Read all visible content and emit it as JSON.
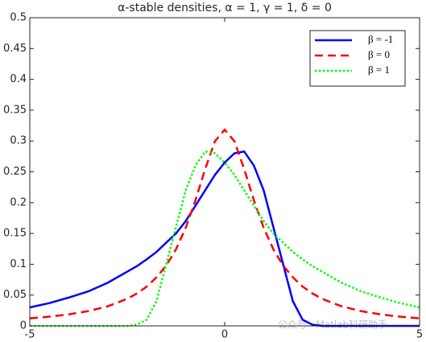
{
  "chart_data": {
    "type": "line",
    "title": "α-stable densities, α = 1, γ = 1, δ = 0",
    "x": [
      -5,
      -4.5,
      -4,
      -3.5,
      -3,
      -2.5,
      -2.25,
      -2,
      -1.75,
      -1.5,
      -1.25,
      -1,
      -0.75,
      -0.5,
      -0.25,
      0,
      0.25,
      0.5,
      0.75,
      1,
      1.25,
      1.5,
      1.75,
      2,
      2.25,
      2.5,
      3,
      3.5,
      4,
      4.5,
      5
    ],
    "series": [
      {
        "name": "β = -1",
        "color": "#0000ff",
        "linestyle": "solid",
        "values": [
          0.03,
          0.037,
          0.046,
          0.056,
          0.07,
          0.088,
          0.097,
          0.108,
          0.12,
          0.135,
          0.15,
          0.17,
          0.195,
          0.22,
          0.245,
          0.265,
          0.28,
          0.283,
          0.26,
          0.22,
          0.16,
          0.1,
          0.04,
          0.01,
          0.002,
          0,
          0,
          0,
          0,
          0,
          0
        ]
      },
      {
        "name": "β = 0",
        "color": "#ff0000",
        "linestyle": "dashed",
        "values": [
          0.0122,
          0.015,
          0.0187,
          0.024,
          0.0318,
          0.0439,
          0.0527,
          0.0637,
          0.0788,
          0.0979,
          0.1241,
          0.1592,
          0.2037,
          0.2546,
          0.2996,
          0.3183,
          0.2996,
          0.2546,
          0.2037,
          0.1592,
          0.1241,
          0.0979,
          0.0788,
          0.0637,
          0.0527,
          0.0439,
          0.0318,
          0.024,
          0.0187,
          0.015,
          0.0122
        ]
      },
      {
        "name": "β = 1",
        "color": "#00ff00",
        "linestyle": "dotted",
        "values": [
          0,
          0,
          0,
          0,
          0,
          0,
          0.002,
          0.01,
          0.04,
          0.1,
          0.16,
          0.22,
          0.26,
          0.283,
          0.28,
          0.265,
          0.245,
          0.22,
          0.195,
          0.17,
          0.15,
          0.135,
          0.12,
          0.108,
          0.097,
          0.088,
          0.07,
          0.056,
          0.046,
          0.037,
          0.03
        ]
      }
    ],
    "xlim": [
      -5,
      5
    ],
    "xticks": [
      -5,
      0,
      5
    ],
    "ylim": [
      0,
      0.5
    ],
    "yticks": [
      0,
      0.05,
      0.1,
      0.15,
      0.2,
      0.25,
      0.3,
      0.35,
      0.4,
      0.45,
      0.5
    ],
    "grid": false,
    "legend": "top-right",
    "watermark": "公众号 · Matlab科研助手"
  }
}
